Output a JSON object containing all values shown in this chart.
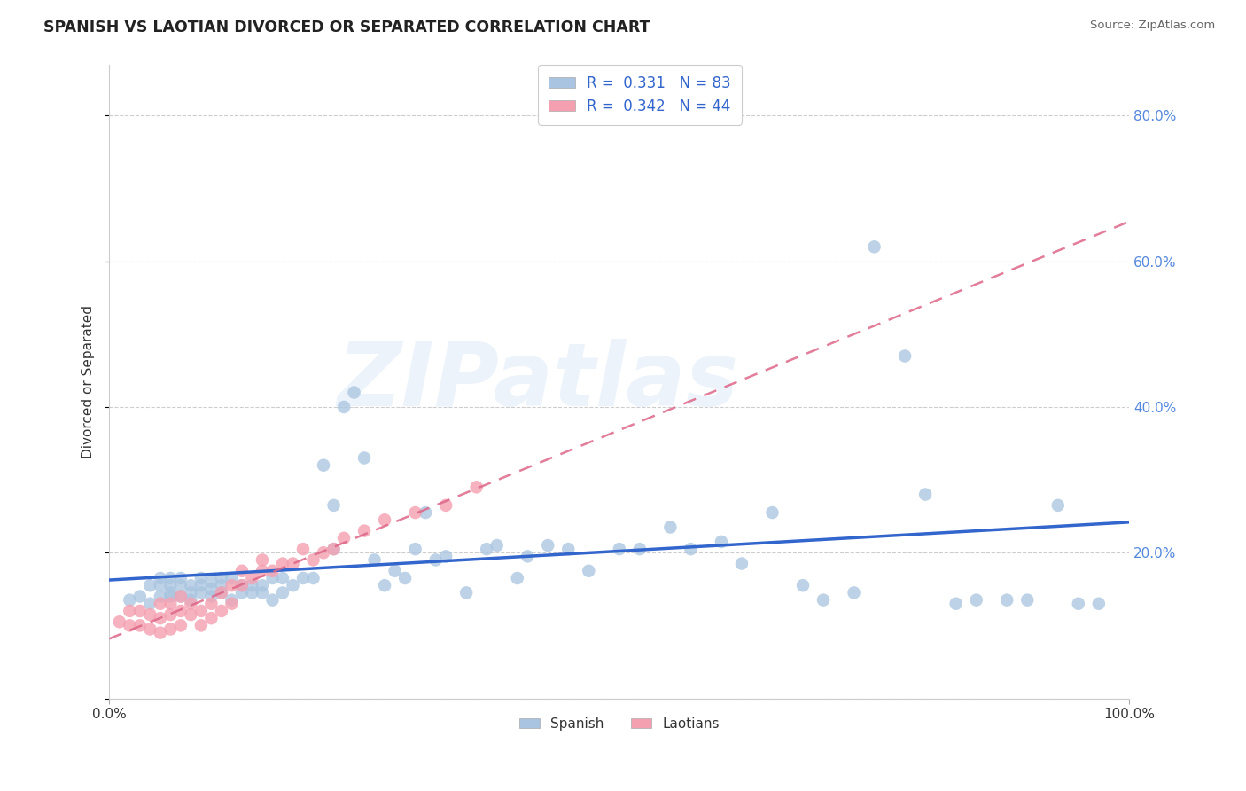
{
  "title": "SPANISH VS LAOTIAN DIVORCED OR SEPARATED CORRELATION CHART",
  "source": "Source: ZipAtlas.com",
  "ylabel": "Divorced or Separated",
  "xlim": [
    0.0,
    1.0
  ],
  "ylim": [
    0.0,
    0.87
  ],
  "x_ticks": [
    0.0,
    1.0
  ],
  "x_tick_labels": [
    "0.0%",
    "100.0%"
  ],
  "y_ticks": [
    0.0,
    0.2,
    0.4,
    0.6,
    0.8
  ],
  "y_tick_labels": [
    "",
    "20.0%",
    "40.0%",
    "60.0%",
    "80.0%"
  ],
  "grid_color": "#c8c8c8",
  "background_color": "#ffffff",
  "watermark_text": "ZIPatlas",
  "spanish_color": "#a8c4e0",
  "laotian_color": "#f4a0b0",
  "spanish_line_color": "#3366cc",
  "laotian_line_color": "#dd6688",
  "legend_label_1": "R =  0.331   N = 83",
  "legend_label_2": "R =  0.342   N = 44",
  "bottom_legend_1": "Spanish",
  "bottom_legend_2": "Laotians",
  "spanish_x": [
    0.02,
    0.03,
    0.04,
    0.04,
    0.05,
    0.05,
    0.05,
    0.06,
    0.06,
    0.06,
    0.06,
    0.07,
    0.07,
    0.07,
    0.08,
    0.08,
    0.08,
    0.09,
    0.09,
    0.09,
    0.1,
    0.1,
    0.1,
    0.11,
    0.11,
    0.11,
    0.12,
    0.12,
    0.13,
    0.13,
    0.14,
    0.14,
    0.15,
    0.15,
    0.16,
    0.16,
    0.17,
    0.17,
    0.18,
    0.19,
    0.2,
    0.21,
    0.22,
    0.22,
    0.23,
    0.24,
    0.25,
    0.26,
    0.27,
    0.28,
    0.29,
    0.3,
    0.31,
    0.32,
    0.33,
    0.35,
    0.37,
    0.38,
    0.4,
    0.41,
    0.43,
    0.45,
    0.47,
    0.5,
    0.52,
    0.55,
    0.57,
    0.6,
    0.62,
    0.65,
    0.68,
    0.7,
    0.73,
    0.75,
    0.78,
    0.8,
    0.83,
    0.85,
    0.88,
    0.9,
    0.93,
    0.95,
    0.97
  ],
  "spanish_y": [
    0.135,
    0.14,
    0.13,
    0.155,
    0.14,
    0.155,
    0.165,
    0.14,
    0.145,
    0.155,
    0.165,
    0.14,
    0.155,
    0.165,
    0.135,
    0.145,
    0.155,
    0.145,
    0.155,
    0.165,
    0.14,
    0.15,
    0.16,
    0.145,
    0.155,
    0.165,
    0.135,
    0.165,
    0.145,
    0.155,
    0.145,
    0.155,
    0.145,
    0.155,
    0.135,
    0.165,
    0.145,
    0.165,
    0.155,
    0.165,
    0.165,
    0.32,
    0.205,
    0.265,
    0.4,
    0.42,
    0.33,
    0.19,
    0.155,
    0.175,
    0.165,
    0.205,
    0.255,
    0.19,
    0.195,
    0.145,
    0.205,
    0.21,
    0.165,
    0.195,
    0.21,
    0.205,
    0.175,
    0.205,
    0.205,
    0.235,
    0.205,
    0.215,
    0.185,
    0.255,
    0.155,
    0.135,
    0.145,
    0.62,
    0.47,
    0.28,
    0.13,
    0.135,
    0.135,
    0.135,
    0.265,
    0.13,
    0.13
  ],
  "laotian_x": [
    0.01,
    0.02,
    0.02,
    0.03,
    0.03,
    0.04,
    0.04,
    0.05,
    0.05,
    0.05,
    0.06,
    0.06,
    0.06,
    0.07,
    0.07,
    0.07,
    0.08,
    0.08,
    0.09,
    0.09,
    0.1,
    0.1,
    0.11,
    0.11,
    0.12,
    0.12,
    0.13,
    0.13,
    0.14,
    0.15,
    0.15,
    0.16,
    0.17,
    0.18,
    0.19,
    0.2,
    0.21,
    0.22,
    0.23,
    0.25,
    0.27,
    0.3,
    0.33,
    0.36
  ],
  "laotian_y": [
    0.105,
    0.1,
    0.12,
    0.1,
    0.12,
    0.095,
    0.115,
    0.09,
    0.11,
    0.13,
    0.095,
    0.115,
    0.13,
    0.1,
    0.12,
    0.14,
    0.115,
    0.13,
    0.1,
    0.12,
    0.11,
    0.13,
    0.12,
    0.145,
    0.13,
    0.155,
    0.155,
    0.175,
    0.165,
    0.175,
    0.19,
    0.175,
    0.185,
    0.185,
    0.205,
    0.19,
    0.2,
    0.205,
    0.22,
    0.23,
    0.245,
    0.255,
    0.265,
    0.29
  ]
}
